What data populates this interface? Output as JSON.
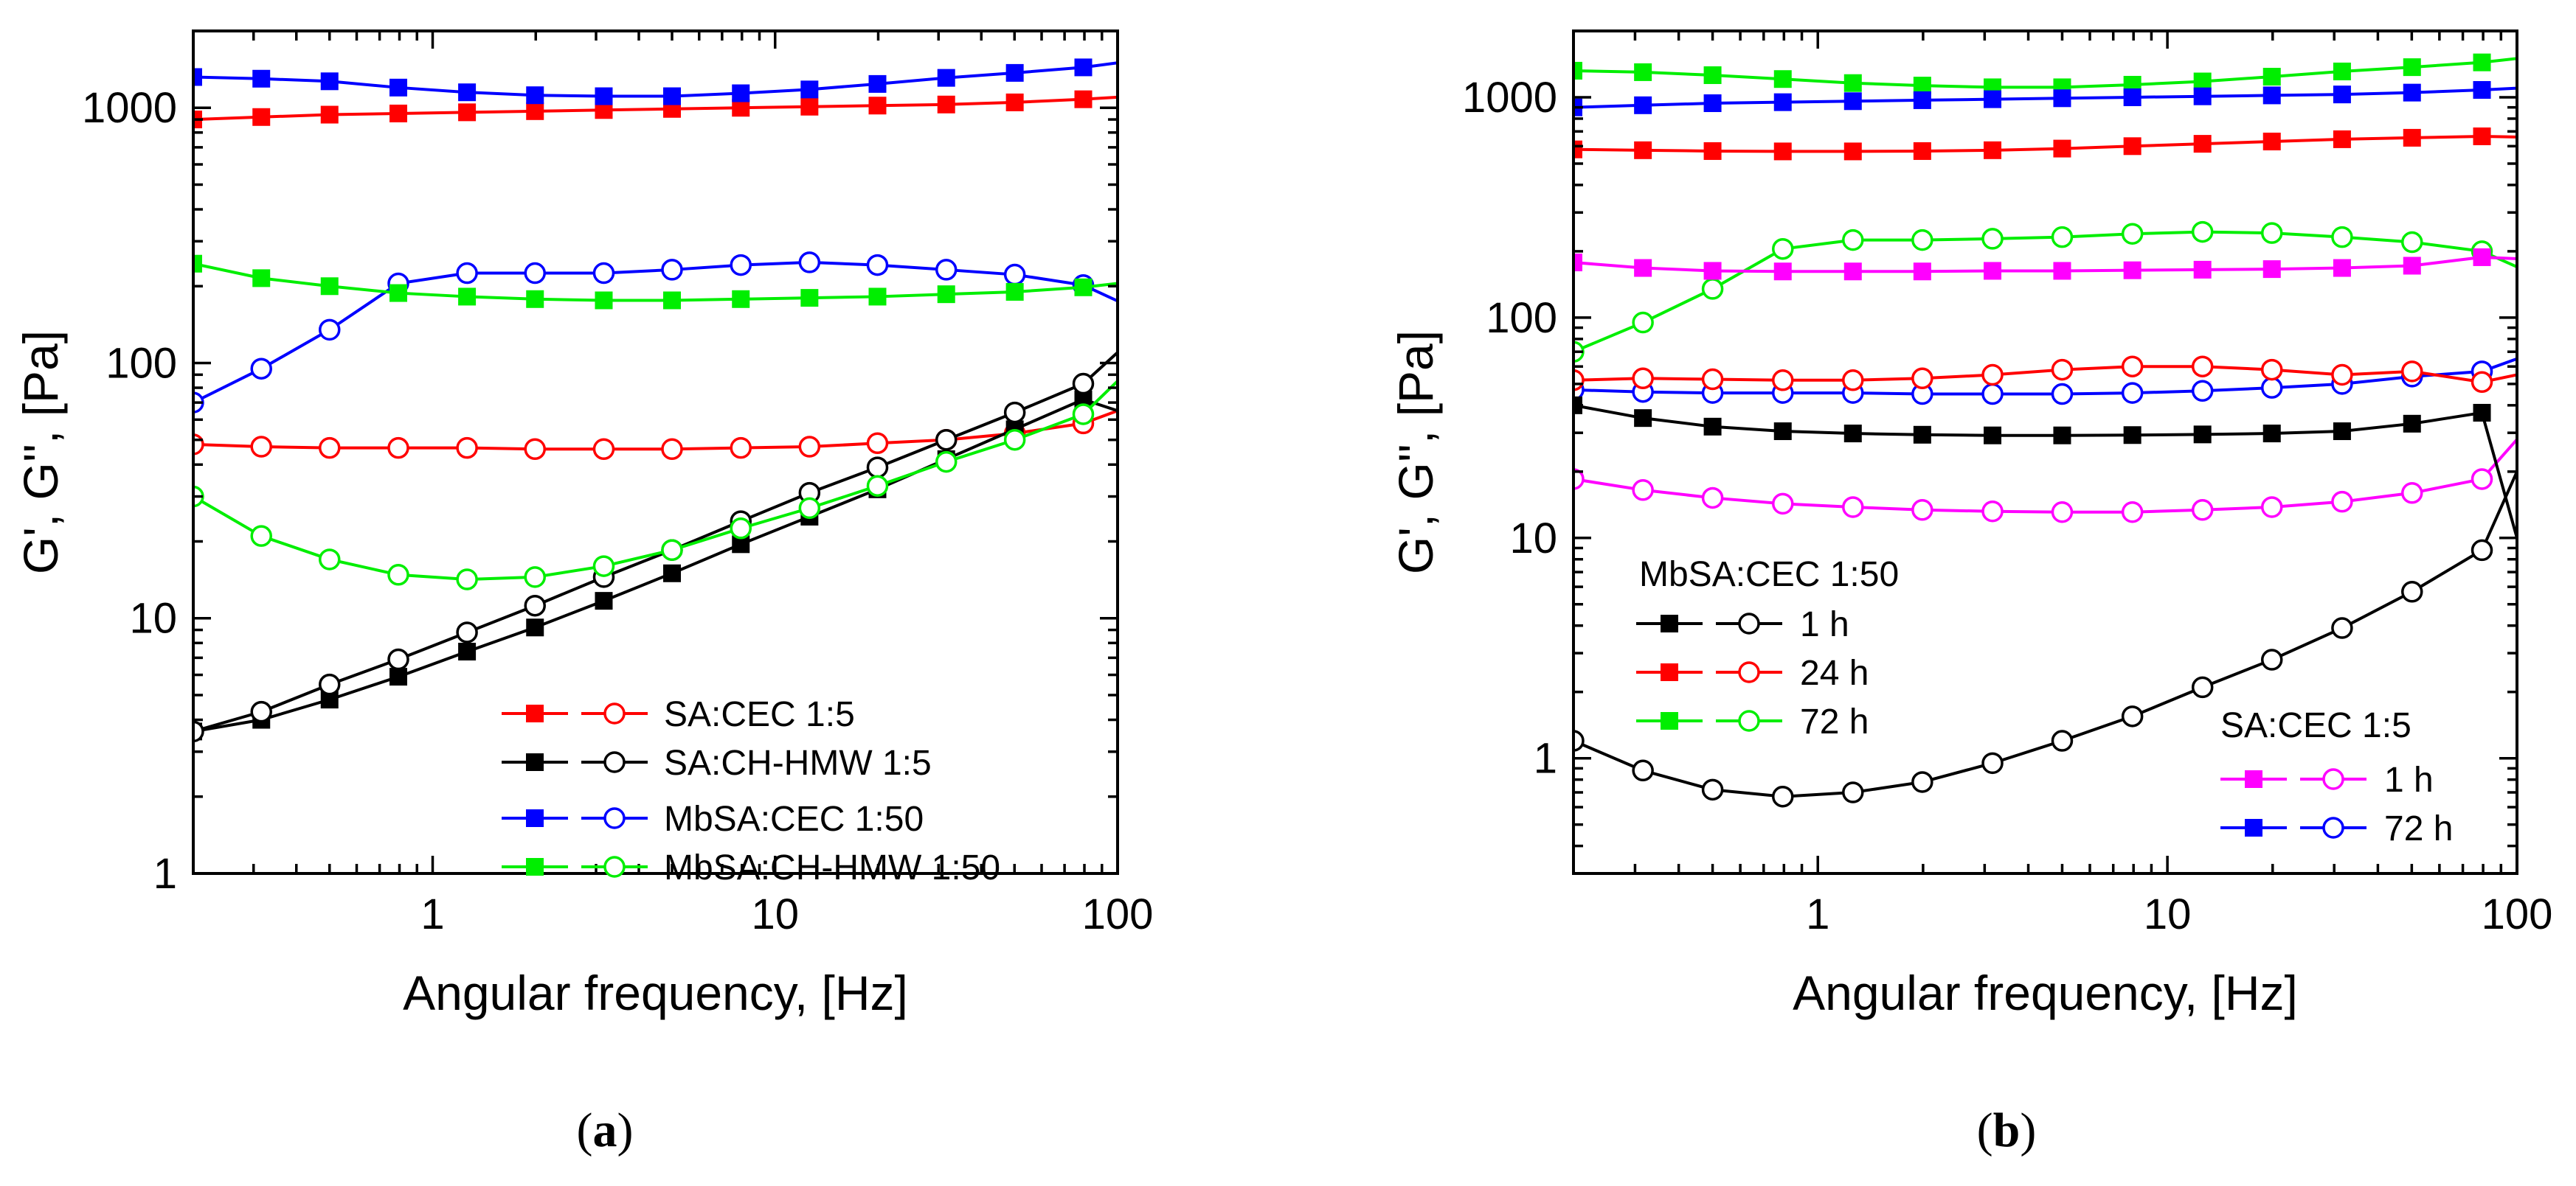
{
  "colors": {
    "red": "#ff0000",
    "black": "#000000",
    "blue": "#0000ff",
    "green": "#00ee00",
    "magenta": "#ff00ff"
  },
  "chart_data": [
    {
      "id": "a",
      "type": "line",
      "panel_label": {
        "open": "(",
        "letter": "a",
        "close": ")"
      },
      "xlabel": "Angular frequency, [Hz]",
      "ylabel": "G', G'', [Pa]",
      "xscale": "log",
      "yscale": "log",
      "xlim": [
        0.2,
        100
      ],
      "ylim": [
        1,
        2000
      ],
      "xticks": [
        1,
        10,
        100
      ],
      "xtick_labels": [
        "1",
        "10",
        "100"
      ],
      "yticks": [
        1,
        10,
        100,
        1000
      ],
      "ytick_labels": [
        "1",
        "10",
        "100",
        "1000"
      ],
      "x": [
        0.2,
        0.316,
        0.5,
        0.794,
        1.26,
        1.99,
        3.16,
        5.0,
        7.94,
        12.6,
        19.9,
        31.6,
        50.1,
        79.4,
        100
      ],
      "legend": [
        {
          "label": "SA:CEC 1:5",
          "color": "red",
          "gap": false
        },
        {
          "label": "SA:CH-HMW 1:5",
          "color": "black",
          "gap": false
        },
        {
          "label": "MbSA:CEC 1:50",
          "color": "blue",
          "gap": true
        },
        {
          "label": "MbSA:CH-HMW 1:50",
          "color": "green",
          "gap": false
        }
      ],
      "series": [
        {
          "name": "SA:CEC 1:5 G'",
          "color": "red",
          "marker": "filled-square",
          "values": [
            900,
            920,
            940,
            950,
            960,
            970,
            980,
            990,
            1000,
            1010,
            1020,
            1030,
            1050,
            1080,
            1100
          ]
        },
        {
          "name": "SA:CEC 1:5 G''",
          "color": "red",
          "marker": "open-circle",
          "values": [
            48,
            47,
            46.5,
            46.5,
            46.5,
            46,
            46,
            46,
            46.5,
            47,
            48.5,
            50,
            53,
            58,
            65
          ]
        },
        {
          "name": "SA:CH-HMW 1:5 G'",
          "color": "black",
          "marker": "filled-square",
          "values": [
            3.6,
            4.0,
            4.8,
            5.9,
            7.4,
            9.2,
            11.7,
            15,
            19.5,
            25,
            32,
            42,
            55,
            72,
            65
          ]
        },
        {
          "name": "SA:CH-HMW 1:5 G''",
          "color": "black",
          "marker": "open-circle",
          "values": [
            3.6,
            4.3,
            5.5,
            6.9,
            8.8,
            11.2,
            14.5,
            18.5,
            24,
            31,
            39,
            50,
            64,
            83,
            110
          ]
        },
        {
          "name": "MbSA:CEC 1:50 G'",
          "color": "blue",
          "marker": "filled-square",
          "values": [
            1320,
            1300,
            1270,
            1200,
            1150,
            1120,
            1110,
            1110,
            1140,
            1180,
            1240,
            1310,
            1370,
            1440,
            1500
          ]
        },
        {
          "name": "MbSA:CEC 1:50 G''",
          "color": "blue",
          "marker": "open-circle",
          "values": [
            70,
            95,
            135,
            205,
            225,
            225,
            225,
            232,
            242,
            248,
            242,
            232,
            222,
            202,
            175
          ]
        },
        {
          "name": "MbSA:CH-HMW 1:50 G'",
          "color": "green",
          "marker": "filled-square",
          "values": [
            245,
            215,
            200,
            188,
            182,
            178,
            176,
            176,
            178,
            180,
            182,
            186,
            190,
            198,
            205
          ]
        },
        {
          "name": "MbSA:CH-HMW 1:50 G''",
          "color": "green",
          "marker": "open-circle",
          "values": [
            30,
            21,
            17,
            14.8,
            14.2,
            14.5,
            16,
            18.5,
            22.5,
            27,
            33,
            41,
            50,
            63,
            85
          ]
        }
      ]
    },
    {
      "id": "b",
      "type": "line",
      "panel_label": {
        "open": "(",
        "letter": "b",
        "close": ")"
      },
      "xlabel": "Angular frequency, [Hz]",
      "ylabel": "G', G'', [Pa]",
      "xscale": "log",
      "yscale": "log",
      "xlim": [
        0.2,
        100
      ],
      "ylim": [
        0.3,
        2000
      ],
      "xticks": [
        1,
        10,
        100
      ],
      "xtick_labels": [
        "1",
        "10",
        "100"
      ],
      "yticks": [
        1,
        10,
        100,
        1000
      ],
      "ytick_labels": [
        "1",
        "10",
        "100",
        "1000"
      ],
      "x": [
        0.2,
        0.316,
        0.5,
        0.794,
        1.26,
        1.99,
        3.16,
        5.0,
        7.94,
        12.6,
        19.9,
        31.6,
        50.1,
        79.4,
        100
      ],
      "legend_groups": [
        {
          "title": "MbSA:CEC 1:50",
          "position": "lower-left",
          "entries": [
            {
              "label": "1 h",
              "color": "black"
            },
            {
              "label": "24 h",
              "color": "red"
            },
            {
              "label": "72 h",
              "color": "green"
            }
          ]
        },
        {
          "title": "SA:CEC 1:5",
          "position": "lower-right",
          "entries": [
            {
              "label": "1 h",
              "color": "magenta"
            },
            {
              "label": "72 h",
              "color": "blue"
            }
          ]
        }
      ],
      "series": [
        {
          "name": "MbSA:CEC 1:50 72 h G'",
          "color": "green",
          "marker": "filled-square",
          "values": [
            1320,
            1300,
            1260,
            1210,
            1160,
            1130,
            1110,
            1110,
            1140,
            1180,
            1240,
            1310,
            1370,
            1440,
            1500
          ]
        },
        {
          "name": "MbSA:CEC 1:50 72 h G''",
          "color": "green",
          "marker": "open-circle",
          "values": [
            70,
            95,
            135,
            205,
            225,
            225,
            228,
            232,
            240,
            245,
            242,
            232,
            220,
            200,
            170
          ]
        },
        {
          "name": "SA:CEC 1:5 72 h G'",
          "color": "blue",
          "marker": "filled-square",
          "values": [
            900,
            920,
            940,
            950,
            960,
            970,
            980,
            990,
            1000,
            1010,
            1020,
            1030,
            1050,
            1080,
            1100
          ]
        },
        {
          "name": "SA:CEC 1:5 72 h G''",
          "color": "blue",
          "marker": "open-circle",
          "values": [
            47,
            46,
            45.5,
            45.5,
            45.5,
            45,
            45,
            45,
            45.5,
            46.5,
            48,
            50,
            54,
            57,
            65
          ]
        },
        {
          "name": "MbSA:CEC 1:50 24 h G'",
          "color": "red",
          "marker": "filled-square",
          "values": [
            580,
            575,
            570,
            568,
            568,
            570,
            575,
            585,
            600,
            615,
            630,
            645,
            655,
            665,
            660
          ]
        },
        {
          "name": "MbSA:CEC 1:50 24 h G''",
          "color": "red",
          "marker": "open-circle",
          "values": [
            52,
            53,
            52.5,
            52,
            52,
            53,
            55,
            58,
            60,
            60,
            58,
            55,
            57,
            51,
            55
          ]
        },
        {
          "name": "SA:CEC 1:5 1 h G'",
          "color": "magenta",
          "marker": "filled-square",
          "values": [
            178,
            168,
            163,
            162,
            162,
            162,
            163,
            163,
            164,
            165,
            166,
            168,
            172,
            188,
            185
          ]
        },
        {
          "name": "SA:CEC 1:5 1 h G''",
          "color": "magenta",
          "marker": "open-circle",
          "values": [
            18.5,
            16.5,
            15.2,
            14.3,
            13.8,
            13.4,
            13.2,
            13.1,
            13.1,
            13.4,
            13.8,
            14.6,
            16,
            18.5,
            28
          ]
        },
        {
          "name": "MbSA:CEC 1:50 1 h G'",
          "color": "black",
          "marker": "filled-square",
          "values": [
            40,
            35,
            32,
            30.5,
            29.8,
            29.4,
            29.2,
            29.2,
            29.3,
            29.5,
            29.8,
            30.5,
            33,
            37,
            10
          ]
        },
        {
          "name": "MbSA:CEC 1:50 1 h G''",
          "color": "black",
          "marker": "open-circle",
          "values": [
            1.2,
            0.88,
            0.72,
            0.67,
            0.7,
            0.78,
            0.95,
            1.2,
            1.55,
            2.1,
            2.8,
            3.9,
            5.7,
            8.8,
            20
          ]
        }
      ]
    }
  ]
}
